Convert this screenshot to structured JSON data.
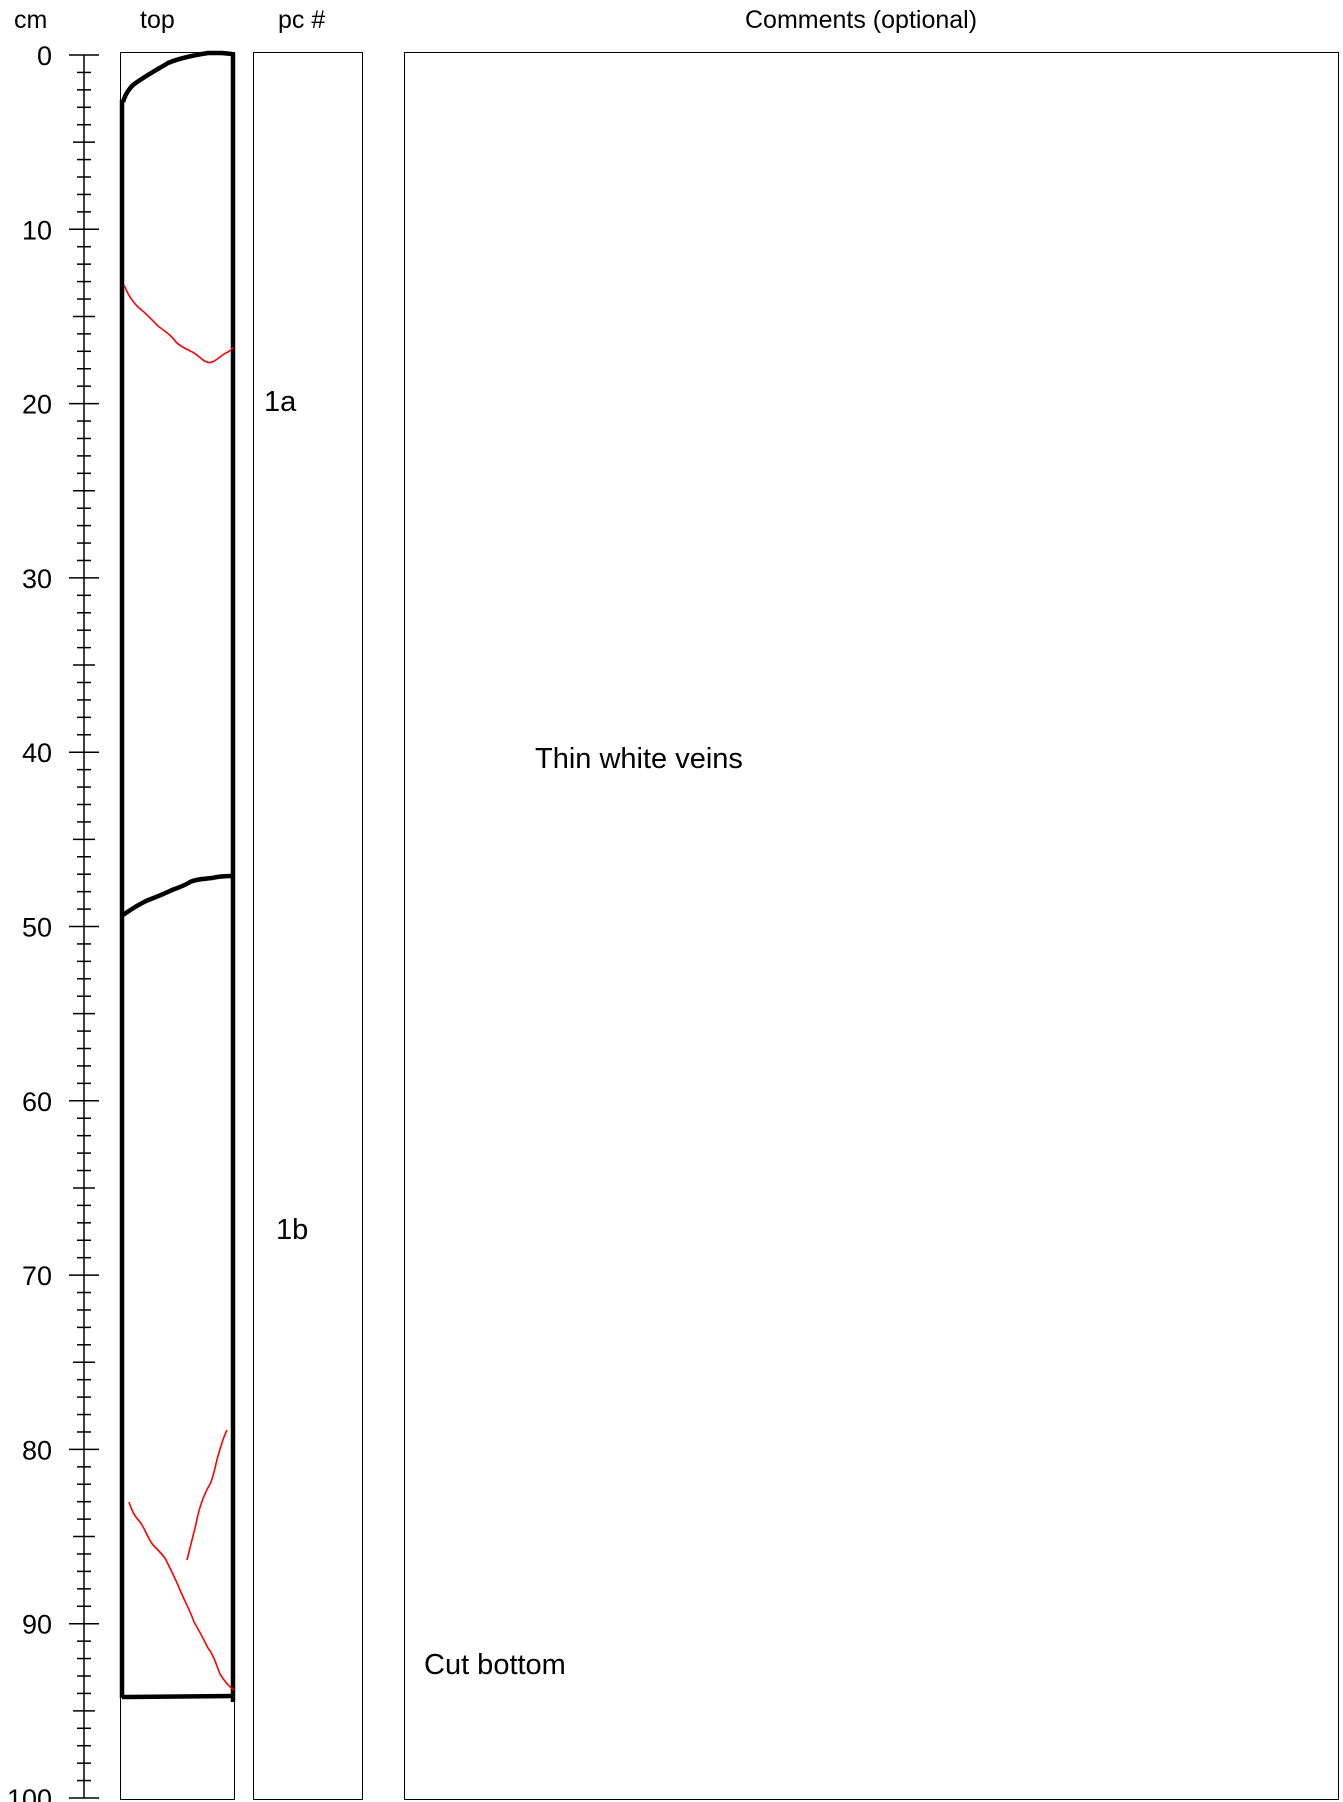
{
  "headers": {
    "depth": "cm",
    "core": "top",
    "piece": "pc #",
    "comments": "Comments (optional)"
  },
  "scale": {
    "unit": "cm",
    "min": 0,
    "max": 100,
    "major_labels": [
      "0",
      "10",
      "20",
      "30",
      "40",
      "50",
      "60",
      "70",
      "80",
      "90",
      "100"
    ]
  },
  "pieces": [
    {
      "id": "1a",
      "depth_cm": 20
    },
    {
      "id": "1b",
      "depth_cm": 67.5
    }
  ],
  "comments": [
    {
      "text": "Thin white veins",
      "depth_cm": 40.5
    },
    {
      "text": "Cut bottom",
      "depth_cm": 92.5
    }
  ],
  "colors": {
    "boundary": "#000000",
    "vein": "#ff0000"
  }
}
